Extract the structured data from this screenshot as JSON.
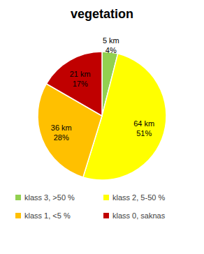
{
  "chart_data": {
    "type": "pie",
    "title": "vegetation",
    "categories": [
      "klass 3, >50 %",
      "klass 2, 5-50 %",
      "klass 1, <5 %",
      "klass 0, saknas"
    ],
    "values": [
      5,
      64,
      36,
      21
    ],
    "value_labels": [
      "5 km",
      "64 km",
      "36 km",
      "21 km"
    ],
    "percentages": [
      4,
      51,
      28,
      17
    ],
    "percentage_labels": [
      "4%",
      "51%",
      "28%",
      "17%"
    ],
    "colors": [
      "#92d050",
      "#ffff00",
      "#ffc000",
      "#c00000"
    ],
    "data_labels": true,
    "legend": "bottom"
  }
}
